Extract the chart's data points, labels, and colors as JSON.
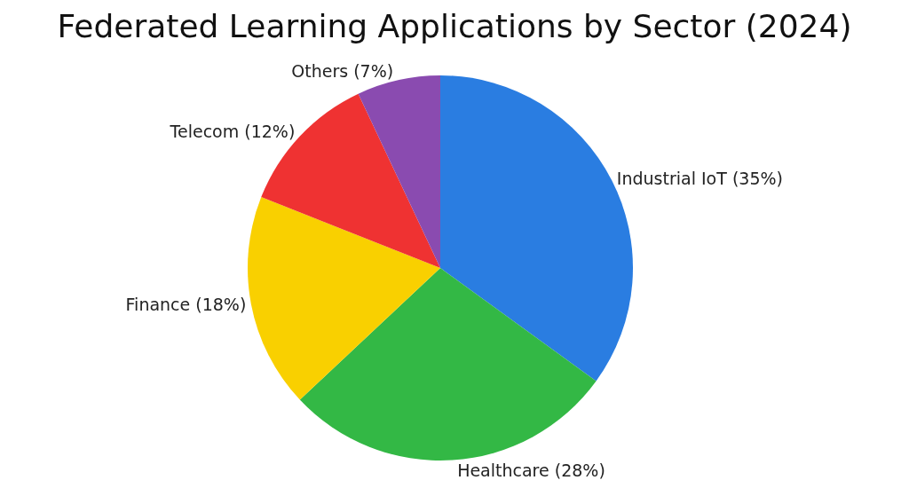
{
  "chart_data": {
    "type": "pie",
    "title": "Federated Learning Applications by Sector (2024)",
    "categories": [
      "Industrial IoT",
      "Healthcare",
      "Finance",
      "Telecom",
      "Others"
    ],
    "values": [
      35,
      28,
      18,
      12,
      7
    ],
    "colors": [
      "#2a7de1",
      "#33b845",
      "#f9d000",
      "#ef3232",
      "#8a4bb0"
    ],
    "value_labels": [
      "(35%)",
      "(28%)",
      "(18%)",
      "(12%)",
      "(7%)"
    ],
    "legend": false
  }
}
